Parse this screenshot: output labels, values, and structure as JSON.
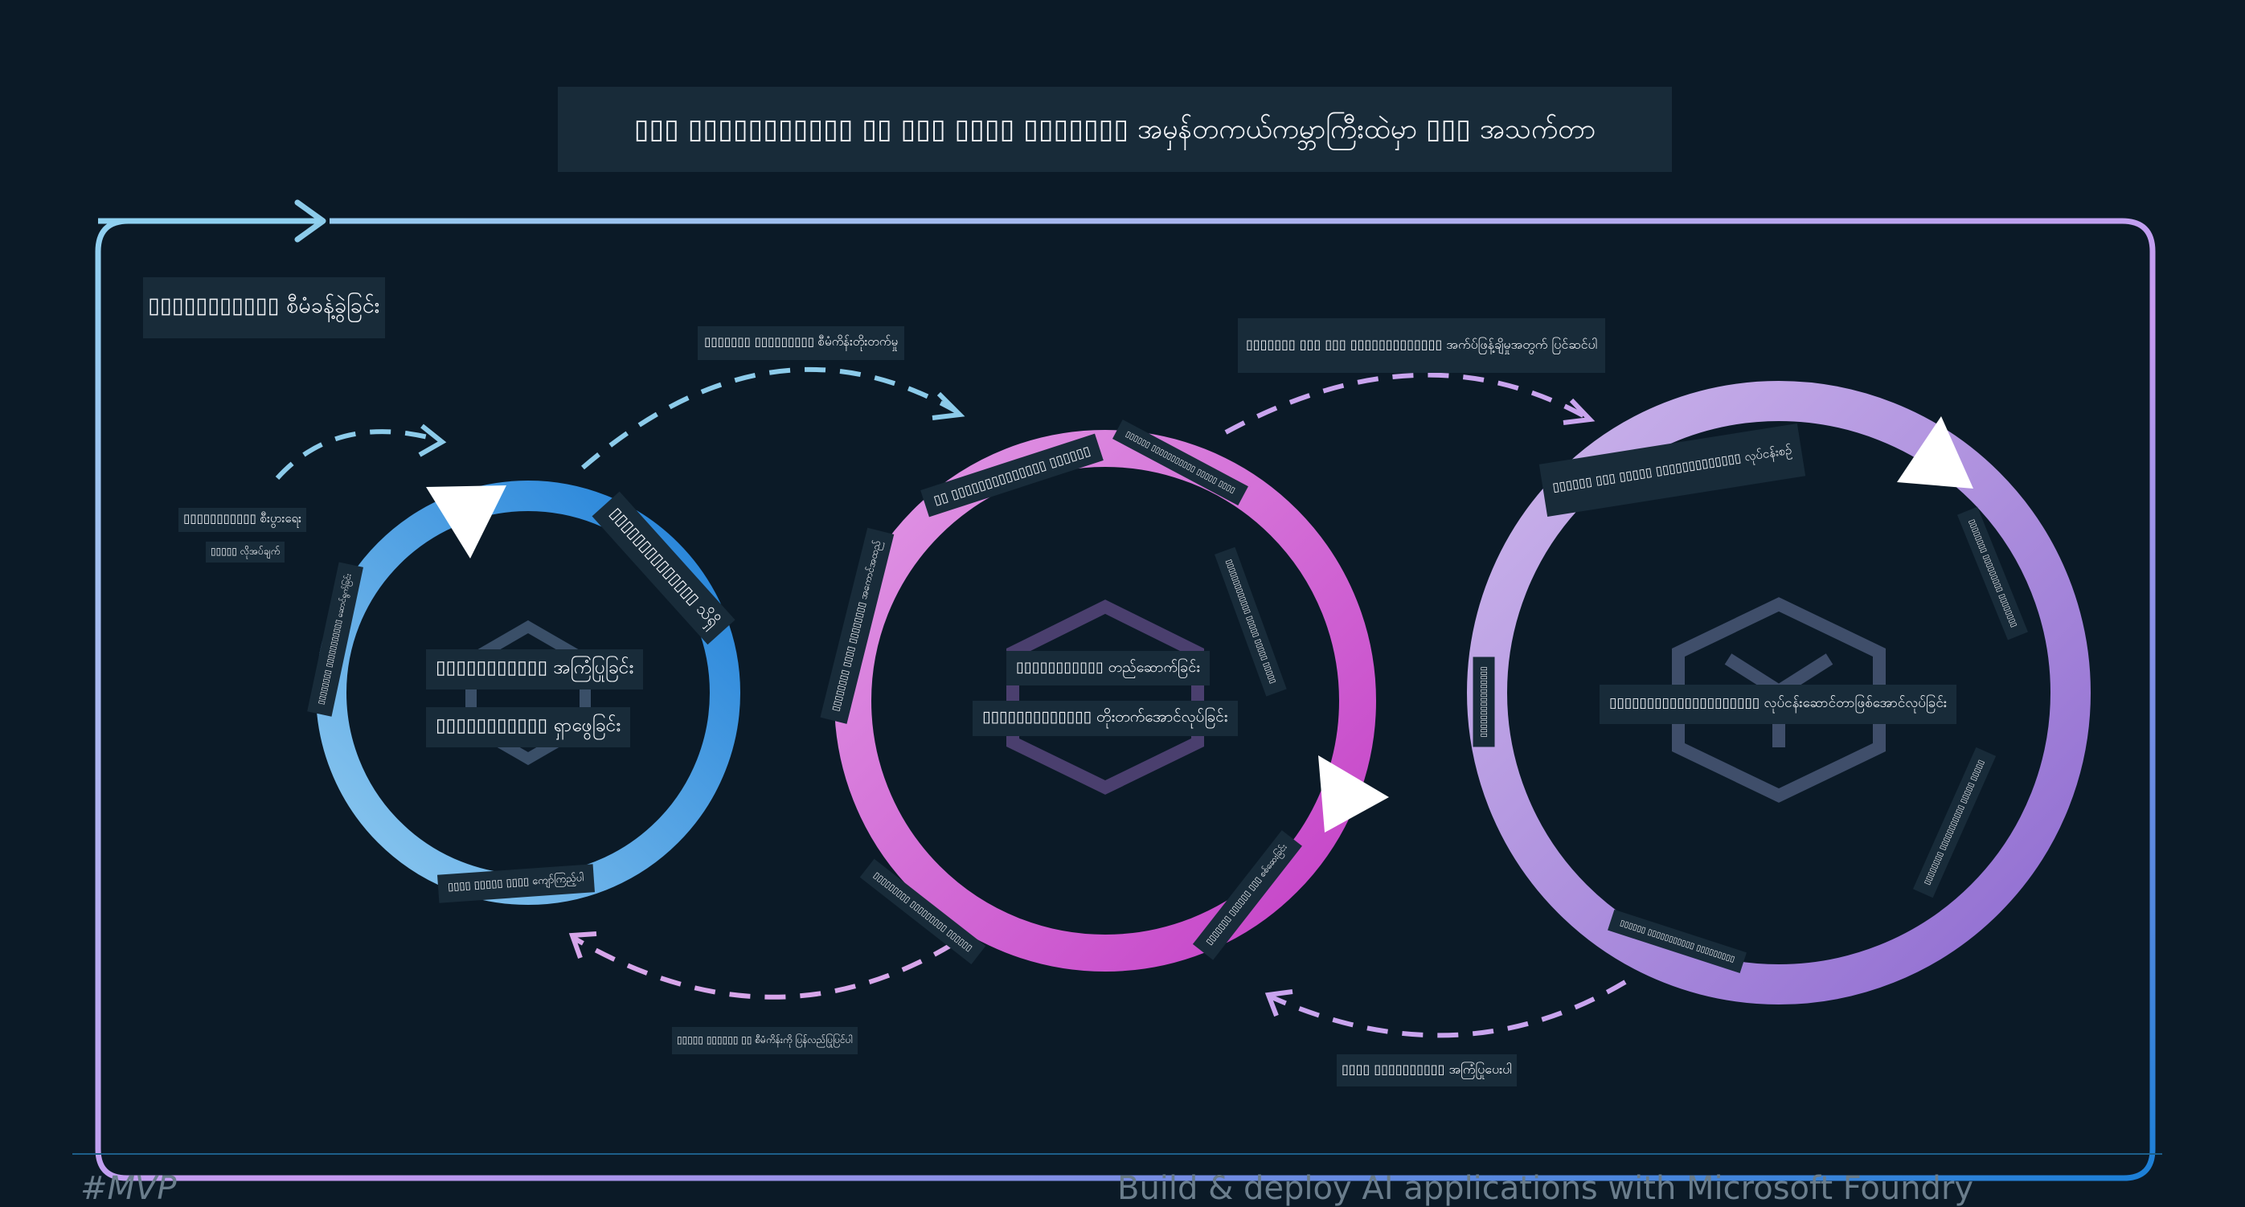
{
  "title": "▯▯▯ ▯▯▯▯▯▯▯▯▯▯▯ ▯▯ ▯▯▯ ▯▯▯▯ ▯▯▯▯▯▯▯ အမှန်တကယ်ကမ္ဘာကြီးထဲမှာ ▯▯▯ အသက်တာ",
  "frame_label": "▯▯▯▯▯▯▯▯▯▯▯ စီမံခန့်ခွဲခြင်း",
  "colors": {
    "background": "#0b1a27",
    "label_bg": "#182b39",
    "frame_start": "#8fd0f0",
    "frame_mid": "#c79af0",
    "frame_end": "#1b7fd6",
    "ring1": "#2f8fe0",
    "ring2": "#d265d6",
    "ring3": "#a684d8",
    "arrow_dash": "#8ccbea"
  },
  "icons": [
    "arrow-head-icon",
    "hexagon-icon",
    "cube-icon"
  ],
  "rings": [
    {
      "name": "ideation",
      "center_lines": [
        "▯▯▯▯▯▯▯▯▯▯▯ အကြံပြုခြင်း",
        "▯▯▯▯▯▯▯▯▯▯▯ ရှာဖွေခြင်း"
      ],
      "ring_labels": [
        "▯▯▯▯▯▯▯▯▯▯▯▯▯▯ သိရှိ",
        "▯▯▯▯▯▯▯▯ ▯▯▯▯▯▯▯▯▯▯▯ ဆောင်ရွက်ခြင်း",
        "▯▯▯▯ ▯▯▯▯▯ ▯▯▯▯ ကျော်ကြည့်ပါ"
      ]
    },
    {
      "name": "building",
      "center_lines": [
        "▯▯▯▯▯▯▯▯▯▯▯ တည်ဆောက်ခြင်း",
        "▯▯▯▯▯▯▯▯▯▯▯▯▯ တိုးတက်အောင်လုပ်ခြင်း"
      ],
      "ring_labels": [
        "▯▯ ▯▯▯▯▯▯▯▯▯▯▯▯▯▯ ▯▯▯▯▯▯",
        "▯▯▯▯▯▯▯▯ ▯▯▯▯ ▯▯▯▯▯▯▯▯ အကောင်အထည်",
        "▯▯▯▯▯▯ ▯▯▯▯▯▯▯▯▯▯▯ ▯▯▯▯▯ ▯▯▯▯",
        "▯▯▯▯▯▯▯▯▯▯▯▯▯ ▯▯▯▯▯ ▯▯▯▯▯ ▯▯▯▯▯",
        "▯▯▯▯▯▯▯▯▯ ▯▯▯▯▯▯▯▯▯ ▯▯▯▯▯▯",
        "▯▯▯▯▯▯▯ ▯▯▯▯▯▯ ▯▯▯ စစ်ဆေးခြင်း"
      ]
    },
    {
      "name": "operationalizing",
      "center_lines": [
        "▯▯▯▯▯▯▯▯▯▯▯▯▯▯▯▯▯▯▯▯ လုပ်ငန်းဆောင်တာဖြစ်အောင်လုပ်ခြင်း"
      ],
      "ring_labels": [
        "▯▯▯▯▯▯ ▯▯▯ ▯▯▯▯▯ ▯▯▯▯▯▯▯▯▯▯▯▯▯ လုပ်ငန်းစဉ်",
        "▯▯▯▯▯▯▯▯ ▯▯▯▯▯▯▯▯▯ ▯▯▯▯▯▯▯▯",
        "▯▯▯▯▯▯▯▯▯▯▯▯▯▯▯▯",
        "▯▯▯▯▯▯▯▯ ▯▯▯▯▯▯▯▯▯▯▯ ▯▯▯▯▯ ▯▯▯▯▯",
        "▯▯▯▯▯▯ ▯▯▯▯▯▯▯▯▯▯▯ ▯▯▯▯▯▯▯▯▯"
      ]
    }
  ],
  "connectors": [
    {
      "name": "run-flows",
      "lines": [
        "▯▯▯▯▯▯▯▯▯▯▯ စီးပွားရေး",
        "▯▯▯▯▯ လိုအပ်ချက်"
      ]
    },
    {
      "name": "promote-1",
      "lines": [
        "▯▯▯▯▯▯▯ ▯▯▯▯▯▯▯▯▯ စီမံကိန်းတိုးတက်မှု"
      ]
    },
    {
      "name": "promote-2",
      "lines": [
        "▯▯▯▯▯▯▯ ▯▯▯ ▯▯▯ ▯▯▯▯▯▯▯▯▯▯▯▯▯ အက်ပ်ဖြန့်ချိမှုအတွက် ပြင်ဆင်ပါ"
      ]
    },
    {
      "name": "back-1",
      "lines": [
        "▯▯▯▯▯ ▯▯▯▯▯▯ ▯▯ စီမံကိန်းကို ပြန်လည်ပြုပြင်ပါ"
      ]
    },
    {
      "name": "back-2",
      "lines": [
        "▯▯▯▯ ▯▯▯▯▯▯▯▯▯▯ အကြံပြုပေးပါ"
      ]
    }
  ],
  "footer": {
    "left": "#MVP",
    "right": "Build & deploy AI applications with Microsoft Foundry"
  }
}
